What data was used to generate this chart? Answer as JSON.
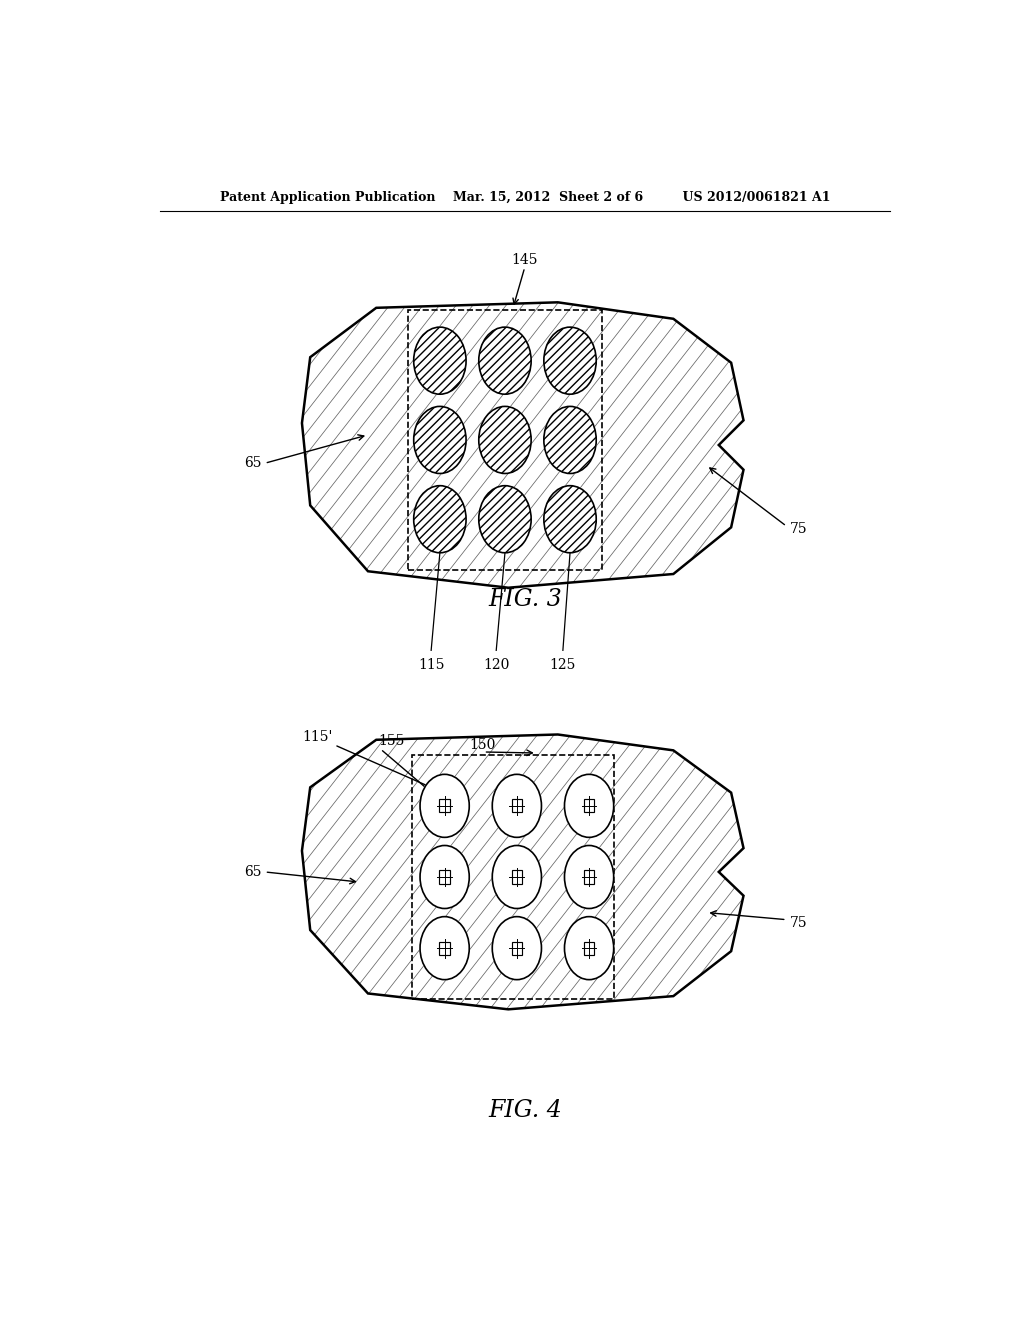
{
  "bg_color": "#ffffff",
  "line_color": "#000000",
  "header_text": "Patent Application Publication    Mar. 15, 2012  Sheet 2 of 6         US 2012/0061821 A1",
  "fig3_label": "FIG. 3",
  "fig4_label": "FIG. 4"
}
